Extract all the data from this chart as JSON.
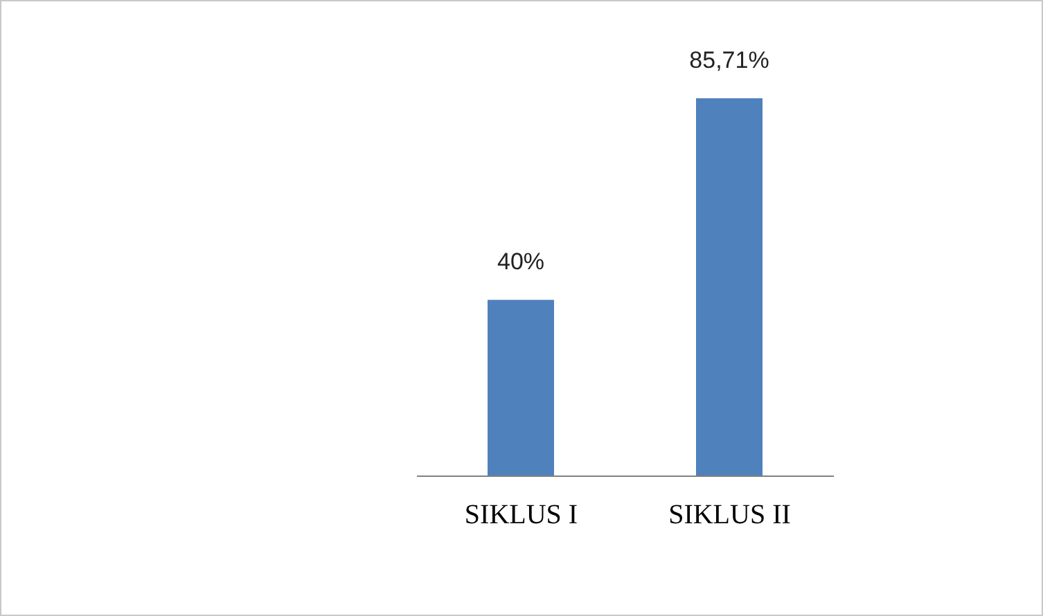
{
  "chart_data": {
    "type": "bar",
    "categories": [
      "SIKLUS I",
      "SIKLUS II"
    ],
    "values": [
      40,
      85.71
    ],
    "value_labels": [
      "40%",
      "85,71%"
    ],
    "color": "#4f81bd"
  }
}
